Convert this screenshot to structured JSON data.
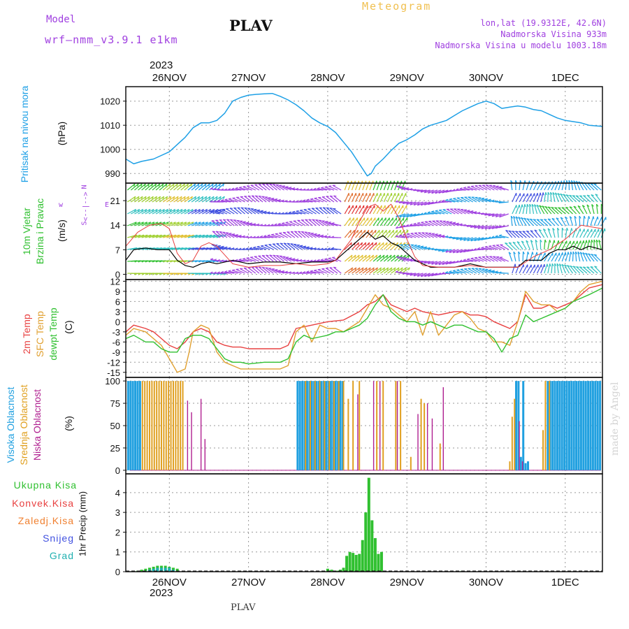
{
  "header": {
    "model_label": "Model",
    "model_name": "wrf–nmm_v3.9.1  e1km",
    "station": "PLAV",
    "meteogram": "Meteogram",
    "lonlat": "lon,lat (19.9312E, 42.6N)",
    "altitude": "Nadmorska Visina 933m",
    "model_altitude": "Nadmorska Visina u modelu 1003.18m",
    "year": "2023",
    "footer_station": "PLAV",
    "watermark": "made by Angel"
  },
  "colors": {
    "pressure": "#1ea0e6",
    "t2m": "#e84040",
    "sfc": "#e0a030",
    "dewpt": "#30c030",
    "high_cloud": "#20a0e0",
    "mid_cloud": "#e0a020",
    "low_cloud": "#b02090",
    "precip_total": "#30c030",
    "precip_grad": "#20b0b0",
    "wind_speed": "#000000",
    "purple_text": "#a040e0"
  },
  "chart_data": [
    {
      "type": "line",
      "panel": "pressure",
      "ylabel": "Pritisak na nivou mora",
      "unit": "(hPa)",
      "yticks": [
        990,
        1000,
        1010,
        1020
      ],
      "ylim": [
        986,
        1026
      ],
      "x_labels": [
        "26NOV",
        "27NOV",
        "28NOV",
        "29NOV",
        "30NOV",
        "1DEC"
      ],
      "x_days": [
        0,
        1,
        2,
        3,
        4,
        5
      ],
      "xlim": [
        -0.55,
        5.47
      ],
      "x": [
        -0.55,
        -0.45,
        -0.35,
        -0.2,
        0,
        0.1,
        0.2,
        0.3,
        0.4,
        0.5,
        0.6,
        0.7,
        0.8,
        0.9,
        1.0,
        1.1,
        1.2,
        1.3,
        1.4,
        1.5,
        1.6,
        1.7,
        1.8,
        1.9,
        2.0,
        2.1,
        2.2,
        2.3,
        2.4,
        2.5,
        2.55,
        2.6,
        2.7,
        2.8,
        2.9,
        3.0,
        3.1,
        3.2,
        3.3,
        3.4,
        3.5,
        3.6,
        3.7,
        3.8,
        3.9,
        4.0,
        4.1,
        4.2,
        4.3,
        4.4,
        4.5,
        4.6,
        4.7,
        4.8,
        4.9,
        5.0,
        5.1,
        5.2,
        5.3,
        5.47
      ],
      "values": [
        996,
        994,
        995,
        996,
        999,
        1002,
        1005,
        1009,
        1011,
        1011,
        1012,
        1015,
        1020,
        1021.5,
        1022.5,
        1022.8,
        1023,
        1023.2,
        1022,
        1020.5,
        1018.5,
        1016,
        1013,
        1011,
        1009.5,
        1007,
        1003,
        999,
        994,
        989,
        990,
        993,
        996,
        999.5,
        1002.5,
        1004,
        1006,
        1008.5,
        1010,
        1011,
        1012,
        1014,
        1016,
        1017.5,
        1019,
        1020,
        1019,
        1017,
        1017.5,
        1018,
        1017.5,
        1016.5,
        1016,
        1014.5,
        1013,
        1012,
        1011.5,
        1011,
        1010,
        1009.5
      ]
    },
    {
      "type": "line",
      "panel": "wind",
      "ylabel": "10m Vjetar Brzina i Pravac",
      "unit": "(m/s)",
      "yticks": [
        0,
        7,
        14,
        21
      ],
      "ylim": [
        -1.5,
        26
      ],
      "compass": "N",
      "compass_w": "w",
      "compass_e": "E",
      "compass_s": "S",
      "xlim": [
        -0.55,
        5.47
      ],
      "series": [
        {
          "name": "speed",
          "x": [
            -0.55,
            -0.45,
            -0.3,
            -0.15,
            0,
            0.1,
            0.2,
            0.3,
            0.4,
            0.5,
            0.6,
            0.8,
            1.0,
            1.2,
            1.4,
            1.6,
            1.8,
            2.0,
            2.1,
            2.2,
            2.3,
            2.4,
            2.5,
            2.6,
            2.7,
            2.8,
            2.9,
            3.0,
            3.1,
            3.2,
            3.3,
            3.4,
            3.5,
            3.6,
            3.7,
            3.8,
            3.9,
            4.0,
            4.1,
            4.2,
            4.3,
            4.4,
            4.5,
            4.6,
            4.7,
            4.8,
            4.9,
            5.0,
            5.1,
            5.2,
            5.3,
            5.47
          ],
          "values": [
            4,
            7,
            7.5,
            7,
            7,
            4,
            2.5,
            2,
            3,
            3.5,
            3,
            4,
            3,
            3.5,
            3.5,
            3,
            3.5,
            3.5,
            4,
            6,
            8,
            10,
            12,
            10,
            11,
            9,
            8,
            6,
            4,
            3,
            2,
            2,
            2,
            2,
            2.5,
            3,
            2.5,
            2,
            2,
            2,
            2,
            2,
            4,
            4,
            4,
            6,
            7,
            7,
            8,
            7,
            8,
            7
          ]
        },
        {
          "name": "gust",
          "x": [
            -0.55,
            -0.4,
            -0.25,
            -0.1,
            0,
            0.1,
            0.2,
            0.3,
            0.4,
            0.5,
            0.6,
            0.8,
            1.0,
            1.2,
            1.4,
            1.6,
            1.8,
            2.0,
            2.1,
            2.2,
            2.3,
            2.4,
            2.5,
            2.6,
            2.7,
            2.8,
            2.9,
            3.0,
            3.1,
            3.2,
            3.4,
            3.6,
            3.8,
            4.0,
            4.2,
            4.4,
            4.6,
            4.8,
            5.0,
            5.2,
            5.47
          ],
          "values": [
            8,
            12,
            14,
            14.5,
            13,
            6,
            3,
            4,
            8,
            9,
            8,
            3,
            2,
            2.5,
            2.5,
            3,
            2.5,
            3,
            4,
            7,
            10,
            15,
            19,
            20,
            18,
            20,
            16,
            10,
            5,
            2.5,
            2,
            2,
            2.5,
            2,
            2,
            2,
            5,
            7,
            10,
            14,
            13
          ]
        }
      ]
    },
    {
      "type": "line",
      "panel": "temperature",
      "ylabel": "2m Temp / SFC Temp / dewpt Temp",
      "unit": "(C)",
      "yticks": [
        -15,
        -12,
        -9,
        -6,
        -3,
        0,
        3,
        6,
        9,
        12
      ],
      "ylim": [
        -16.5,
        12.5
      ],
      "xlim": [
        -0.55,
        5.47
      ],
      "series": [
        {
          "name": "2m Temp",
          "x": [
            -0.55,
            -0.45,
            -0.3,
            -0.2,
            -0.1,
            0,
            0.1,
            0.2,
            0.3,
            0.4,
            0.5,
            0.6,
            0.7,
            0.8,
            0.9,
            1.0,
            1.2,
            1.4,
            1.5,
            1.6,
            1.7,
            1.8,
            2.0,
            2.2,
            2.4,
            2.5,
            2.6,
            2.7,
            2.8,
            2.9,
            3.0,
            3.1,
            3.2,
            3.4,
            3.6,
            3.7,
            3.8,
            3.9,
            4.0,
            4.1,
            4.2,
            4.3,
            4.4,
            4.5,
            4.6,
            4.7,
            4.8,
            4.9,
            5.0,
            5.1,
            5.2,
            5.3,
            5.47
          ],
          "values": [
            -3,
            -1,
            -2,
            -3,
            -5,
            -7,
            -8,
            -6,
            -3,
            -2,
            -3,
            -6,
            -7,
            -7.5,
            -7.5,
            -8,
            -8,
            -8,
            -7,
            -2,
            -1.5,
            -1,
            0,
            0.5,
            3,
            5,
            6,
            8,
            5,
            4,
            3,
            4,
            3,
            2,
            3,
            3,
            2,
            2,
            1.5,
            0,
            -1,
            -2,
            0,
            8,
            4,
            4,
            5,
            4,
            5,
            6,
            8,
            10,
            11
          ]
        },
        {
          "name": "SFC Temp",
          "x": [
            -0.55,
            -0.45,
            -0.3,
            -0.2,
            -0.1,
            0,
            0.1,
            0.2,
            0.25,
            0.3,
            0.4,
            0.5,
            0.6,
            0.7,
            0.8,
            0.9,
            1.0,
            1.2,
            1.4,
            1.5,
            1.6,
            1.7,
            1.8,
            1.9,
            2.0,
            2.1,
            2.2,
            2.4,
            2.5,
            2.6,
            2.7,
            2.8,
            2.9,
            3.0,
            3.1,
            3.2,
            3.3,
            3.4,
            3.5,
            3.6,
            3.7,
            3.8,
            3.9,
            4.0,
            4.1,
            4.2,
            4.3,
            4.4,
            4.5,
            4.6,
            4.7,
            4.8,
            4.9,
            5.0,
            5.1,
            5.2,
            5.3,
            5.47
          ],
          "values": [
            -4,
            -2,
            -3,
            -5,
            -7,
            -11,
            -15,
            -14,
            -9,
            -3,
            -1,
            -2,
            -9,
            -12,
            -13,
            -14,
            -14,
            -14,
            -14,
            -13,
            -3,
            -1,
            -6,
            -1,
            -2,
            -2,
            -3,
            0,
            4,
            8,
            5,
            4,
            2,
            0,
            3,
            -4,
            3,
            -4,
            -1,
            2,
            3,
            1,
            -2,
            -3,
            -6,
            -6,
            -7,
            0,
            9,
            6,
            5,
            5,
            3,
            4,
            6,
            9,
            11,
            12
          ]
        },
        {
          "name": "dewpt Temp",
          "x": [
            -0.55,
            -0.45,
            -0.3,
            -0.2,
            -0.1,
            0,
            0.1,
            0.2,
            0.3,
            0.4,
            0.5,
            0.6,
            0.7,
            0.8,
            0.9,
            1.0,
            1.2,
            1.4,
            1.5,
            1.6,
            1.7,
            1.8,
            2.0,
            2.1,
            2.2,
            2.4,
            2.5,
            2.6,
            2.7,
            2.8,
            2.9,
            3.0,
            3.1,
            3.2,
            3.3,
            3.4,
            3.5,
            3.6,
            3.7,
            3.8,
            3.9,
            4.0,
            4.1,
            4.2,
            4.3,
            4.4,
            4.5,
            4.6,
            4.7,
            4.8,
            4.9,
            5.0,
            5.1,
            5.2,
            5.3,
            5.47
          ],
          "values": [
            -5,
            -4,
            -6,
            -6,
            -8,
            -9,
            -9,
            -5,
            -4,
            -4,
            -5,
            -8,
            -11,
            -12,
            -12,
            -12.5,
            -12,
            -12,
            -11,
            -6,
            -4,
            -5,
            -4,
            -3,
            -3,
            -1,
            1,
            5,
            8,
            3,
            1,
            0,
            0,
            -1,
            0,
            -1,
            -2,
            -1,
            -1,
            -2,
            -3,
            -3,
            -5,
            -9,
            -5,
            -4,
            2,
            0,
            1,
            2,
            3,
            4,
            6,
            7,
            8,
            10
          ]
        }
      ]
    },
    {
      "type": "bar",
      "panel": "cloud",
      "ylabel": "Visoka Oblacnost / Srednja Oblacnost / Niska Oblacnost",
      "unit": "(%)",
      "yticks": [
        0,
        25,
        50,
        75,
        100
      ],
      "ylim": [
        -4,
        104
      ],
      "xlim": [
        -0.55,
        5.47
      ],
      "series": [
        {
          "name": "Visoka Oblacnost",
          "x": [
            -0.52,
            -0.49,
            -0.46,
            -0.43,
            -0.4,
            -0.37,
            1.62,
            1.65,
            1.68,
            1.71,
            1.74,
            1.77,
            1.8,
            1.83,
            1.86,
            1.89,
            1.92,
            1.95,
            1.98,
            2.01,
            2.04,
            2.07,
            2.1,
            2.13,
            2.16,
            2.19,
            4.38,
            4.41,
            4.44,
            4.47,
            4.5,
            4.53,
            4.78,
            4.81,
            4.84,
            4.87,
            4.9,
            4.93,
            4.96,
            4.99,
            5.02,
            5.05,
            5.08,
            5.11,
            5.14,
            5.17,
            5.2,
            5.23,
            5.26,
            5.29,
            5.32,
            5.35,
            5.38,
            5.41,
            5.44
          ],
          "values": [
            100,
            100,
            100,
            100,
            100,
            100,
            100,
            100,
            100,
            100,
            100,
            100,
            100,
            100,
            100,
            100,
            100,
            100,
            100,
            100,
            100,
            100,
            100,
            100,
            100,
            100,
            100,
            100,
            15,
            100,
            8,
            10,
            100,
            100,
            100,
            100,
            100,
            100,
            100,
            100,
            100,
            100,
            100,
            100,
            100,
            100,
            100,
            100,
            100,
            100,
            100,
            100,
            100,
            100,
            100
          ]
        },
        {
          "name": "Srednja Oblacnost",
          "x": [
            -0.34,
            -0.31,
            -0.28,
            -0.25,
            -0.22,
            -0.19,
            -0.16,
            -0.13,
            -0.1,
            -0.07,
            -0.04,
            -0.01,
            0.02,
            0.05,
            0.08,
            0.11,
            0.14,
            0.17,
            1.72,
            1.78,
            1.84,
            1.9,
            1.96,
            2.02,
            2.08,
            2.14,
            2.2,
            2.26,
            2.32,
            2.4,
            2.62,
            2.7,
            2.86,
            2.92,
            3.05,
            3.18,
            3.22,
            3.42,
            4.3,
            4.33,
            4.36,
            4.72,
            4.75,
            4.8
          ],
          "values": [
            100,
            100,
            100,
            100,
            100,
            100,
            100,
            100,
            100,
            100,
            100,
            100,
            100,
            100,
            100,
            100,
            100,
            100,
            100,
            100,
            100,
            100,
            100,
            100,
            100,
            100,
            100,
            80,
            100,
            100,
            100,
            100,
            100,
            100,
            15,
            80,
            75,
            30,
            10,
            60,
            80,
            45,
            100,
            100
          ]
        },
        {
          "name": "Niska Oblacnost",
          "x": [
            0.23,
            0.28,
            0.4,
            0.45,
            2.38,
            2.58,
            2.66,
            2.88,
            3.14,
            3.26,
            3.32,
            3.46,
            4.42,
            4.46
          ],
          "values": [
            78,
            65,
            80,
            35,
            85,
            100,
            100,
            100,
            63,
            75,
            58,
            93,
            55,
            10
          ]
        }
      ]
    },
    {
      "type": "bar",
      "panel": "precip",
      "ylabel": "1hr Precip (mm)",
      "yticks": [
        0,
        1,
        2,
        3,
        4
      ],
      "ylim": [
        0,
        4.95
      ],
      "xlim": [
        -0.55,
        5.47
      ],
      "legend": [
        "Ukupna Kisa",
        "Konvek.Kisa",
        "Zaledj.Kisa",
        "Snijeg",
        "Grad"
      ],
      "series": [
        {
          "name": "Ukupna Kisa",
          "x": [
            -0.4,
            -0.35,
            -0.3,
            -0.25,
            -0.2,
            -0.15,
            -0.1,
            -0.05,
            0.0,
            0.05,
            0.1,
            1.95,
            2.0,
            2.05,
            2.1,
            2.12,
            2.16,
            2.2,
            2.24,
            2.28,
            2.32,
            2.36,
            2.4,
            2.44,
            2.48,
            2.52,
            2.56,
            2.6,
            2.64,
            2.68,
            3.7
          ],
          "values": [
            0.05,
            0.1,
            0.15,
            0.2,
            0.25,
            0.3,
            0.3,
            0.3,
            0.25,
            0.2,
            0.15,
            0.05,
            0.15,
            0.1,
            0.05,
            0.05,
            0.1,
            0.2,
            0.8,
            1.0,
            0.95,
            0.85,
            0.9,
            1.6,
            3.0,
            4.75,
            2.6,
            1.7,
            0.9,
            1.0,
            0.05
          ]
        },
        {
          "name": "Grad",
          "x": [
            -0.3,
            -0.25,
            -0.2,
            -0.15,
            -0.1,
            -0.05,
            0.0,
            0.05
          ],
          "values": [
            0.05,
            0.1,
            0.15,
            0.2,
            0.2,
            0.2,
            0.2,
            0.1
          ]
        }
      ]
    }
  ],
  "panel_labels": {
    "pressure": [
      "Pritisak na nivou mora"
    ],
    "wind": [
      "10m Vjetar",
      "Brzina i Pravac"
    ],
    "temp_lines": [
      "2m Temp",
      "SFC Temp",
      "dewpt Temp"
    ],
    "cloud_lines": [
      "Visoka Oblacnost",
      "Srednja Oblacnost",
      "Niska Oblacnost"
    ]
  }
}
